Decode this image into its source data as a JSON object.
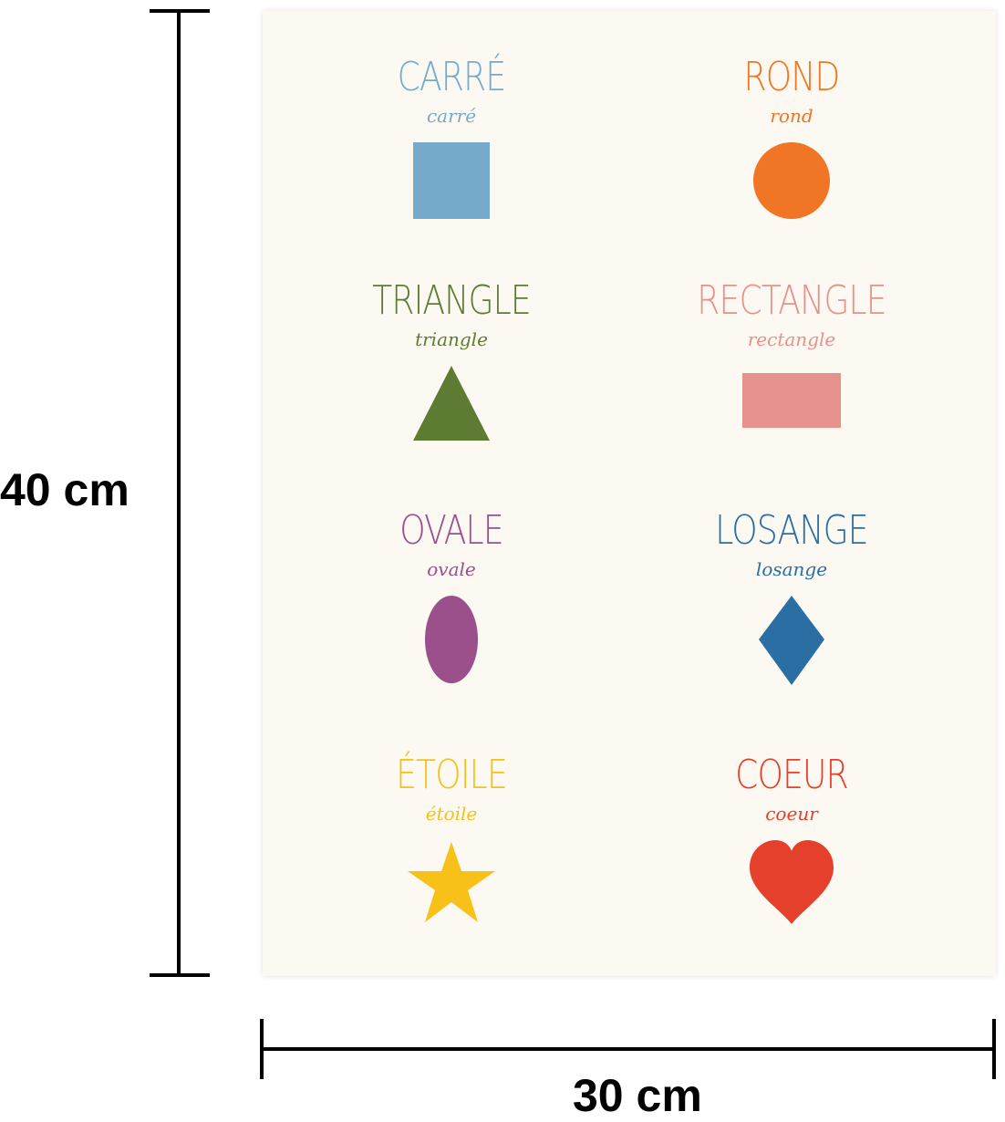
{
  "dimensions": {
    "height_label": "40 cm",
    "width_label": "30 cm"
  },
  "poster": {
    "background": "#fbf9f1",
    "shapes": [
      {
        "title": "CARRÉ",
        "subtitle": "carré",
        "shape": "square",
        "color": "#76aacb"
      },
      {
        "title": "ROND",
        "subtitle": "rond",
        "shape": "circle",
        "color": "#f07524"
      },
      {
        "title": "TRIANGLE",
        "subtitle": "triangle",
        "shape": "triangle",
        "color": "#5e7b33"
      },
      {
        "title": "RECTANGLE",
        "subtitle": "rectangle",
        "shape": "rectangle",
        "color": "#e7918c"
      },
      {
        "title": "OVALE",
        "subtitle": "ovale",
        "shape": "oval",
        "color": "#9b4f8b"
      },
      {
        "title": "LOSANGE",
        "subtitle": "losange",
        "shape": "diamond",
        "color": "#2b6ea3"
      },
      {
        "title": "ÉTOILE",
        "subtitle": "étoile",
        "shape": "star",
        "color": "#f8c11a"
      },
      {
        "title": "COEUR",
        "subtitle": "coeur",
        "shape": "heart",
        "color": "#e4402c"
      }
    ]
  }
}
